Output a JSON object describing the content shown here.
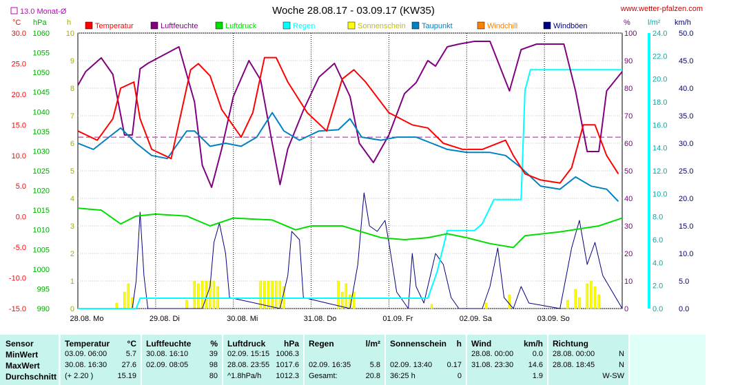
{
  "title": "Woche 28.08.17 - 03.09.17 (KW35)",
  "website": "www.wetter-pfalzen.com",
  "monat_label": "13.0 Monat-Ø",
  "units": {
    "temp": "°C",
    "pressure": "hPa",
    "hours": "h",
    "percent": "%",
    "rain": "l/m²",
    "wind": "km/h"
  },
  "legend": [
    {
      "name": "Temperatur",
      "color": "#ff0000"
    },
    {
      "name": "Luftfeuchte",
      "color": "#800080"
    },
    {
      "name": "Luftdruck",
      "color": "#00dd00"
    },
    {
      "name": "Regen",
      "color": "#00ffff"
    },
    {
      "name": "Sonnenschein",
      "color": "#ffff00"
    },
    {
      "name": "Taupunkt",
      "color": "#0080c0"
    },
    {
      "name": "Windchill",
      "color": "#ff8000"
    },
    {
      "name": "Windböen",
      "color": "#000080"
    }
  ],
  "chart_data": {
    "type": "line",
    "x_labels": [
      "28.08. Mo",
      "29.08. Di",
      "30.08. Mi",
      "31.08. Do",
      "01.09. Fr",
      "02.09. Sa",
      "03.09. So"
    ],
    "axes": {
      "temp": {
        "ticks": [
          "30.0",
          "25.0",
          "20.0",
          "15.0",
          "10.0",
          "5.0",
          "0.0",
          "-5.0",
          "-10.0",
          "-15.0"
        ],
        "range": [
          -15,
          30
        ]
      },
      "pressure": {
        "ticks": [
          "1060",
          "1055",
          "1050",
          "1045",
          "1040",
          "1035",
          "1030",
          "1025",
          "1020",
          "1015",
          "1010",
          "1005",
          "1000",
          "995",
          "990"
        ],
        "range": [
          990,
          1060
        ]
      },
      "hours": {
        "ticks": [
          "10",
          "9",
          "8",
          "7",
          "6",
          "5",
          "4",
          "3",
          "2",
          "1",
          "0"
        ],
        "range": [
          0,
          10
        ]
      },
      "humidity": {
        "ticks": [
          "100",
          "90",
          "80",
          "70",
          "60",
          "50",
          "40",
          "30",
          "20",
          "10",
          "0"
        ],
        "range": [
          0,
          100
        ]
      },
      "rain": {
        "ticks": [
          "24.0",
          "22.0",
          "20.0",
          "18.0",
          "16.0",
          "14.0",
          "12.0",
          "10.0",
          "8.0",
          "6.0",
          "4.0",
          "2.0",
          "0.0"
        ],
        "range": [
          0,
          24
        ]
      },
      "wind": {
        "ticks": [
          "50.0",
          "45.0",
          "40.0",
          "35.0",
          "30.0",
          "25.0",
          "20.0",
          "15.0",
          "10.0",
          "5.0",
          "0.0"
        ],
        "range": [
          0,
          50
        ]
      }
    },
    "monthly_avg_temp": 13.0,
    "series": [
      {
        "name": "Temperatur",
        "axis": "temp",
        "points": [
          [
            0,
            14
          ],
          [
            0.25,
            12.5
          ],
          [
            0.45,
            16
          ],
          [
            0.55,
            21
          ],
          [
            0.72,
            22
          ],
          [
            0.8,
            16
          ],
          [
            0.95,
            11
          ],
          [
            1.2,
            9.5
          ],
          [
            1.45,
            24
          ],
          [
            1.55,
            25
          ],
          [
            1.7,
            23
          ],
          [
            1.85,
            17.5
          ],
          [
            2.1,
            13
          ],
          [
            2.25,
            17
          ],
          [
            2.4,
            26
          ],
          [
            2.55,
            26
          ],
          [
            2.7,
            22
          ],
          [
            2.95,
            17
          ],
          [
            3.2,
            14
          ],
          [
            3.4,
            22.5
          ],
          [
            3.55,
            24
          ],
          [
            3.7,
            22
          ],
          [
            4.0,
            17
          ],
          [
            4.3,
            15
          ],
          [
            4.5,
            14.5
          ],
          [
            4.7,
            12
          ],
          [
            4.95,
            11
          ],
          [
            5.2,
            11
          ],
          [
            5.5,
            12.5
          ],
          [
            5.6,
            10
          ],
          [
            5.75,
            7
          ],
          [
            5.95,
            6
          ],
          [
            6.2,
            5.5
          ],
          [
            6.35,
            8
          ],
          [
            6.5,
            15
          ],
          [
            6.65,
            15
          ],
          [
            6.8,
            10
          ],
          [
            6.95,
            7
          ]
        ]
      },
      {
        "name": "Taupunkt",
        "axis": "temp",
        "points": [
          [
            0,
            12
          ],
          [
            0.2,
            11
          ],
          [
            0.4,
            13
          ],
          [
            0.55,
            14.5
          ],
          [
            0.75,
            12
          ],
          [
            0.95,
            10
          ],
          [
            1.15,
            9.5
          ],
          [
            1.4,
            14
          ],
          [
            1.5,
            14
          ],
          [
            1.7,
            11.5
          ],
          [
            1.9,
            12
          ],
          [
            2.1,
            11.5
          ],
          [
            2.3,
            13
          ],
          [
            2.5,
            17
          ],
          [
            2.65,
            14
          ],
          [
            2.85,
            12.5
          ],
          [
            3.1,
            14
          ],
          [
            3.35,
            14.2
          ],
          [
            3.5,
            16
          ],
          [
            3.65,
            13
          ],
          [
            3.9,
            12.5
          ],
          [
            4.1,
            13
          ],
          [
            4.35,
            13
          ],
          [
            4.55,
            12
          ],
          [
            4.75,
            11
          ],
          [
            5.0,
            10.5
          ],
          [
            5.3,
            10.5
          ],
          [
            5.5,
            10
          ],
          [
            5.7,
            8
          ],
          [
            5.95,
            5
          ],
          [
            6.2,
            4.5
          ],
          [
            6.4,
            6.5
          ],
          [
            6.6,
            5
          ],
          [
            6.8,
            4.5
          ],
          [
            6.95,
            2.5
          ]
        ]
      },
      {
        "name": "Luftfeuchte",
        "axis": "humidity",
        "points": [
          [
            0,
            81
          ],
          [
            0.1,
            86
          ],
          [
            0.3,
            91
          ],
          [
            0.45,
            85
          ],
          [
            0.6,
            63
          ],
          [
            0.7,
            63
          ],
          [
            0.8,
            87
          ],
          [
            0.9,
            89
          ],
          [
            1.1,
            92
          ],
          [
            1.3,
            95
          ],
          [
            1.5,
            75
          ],
          [
            1.6,
            52
          ],
          [
            1.72,
            44
          ],
          [
            1.85,
            58
          ],
          [
            2.0,
            77
          ],
          [
            2.2,
            90
          ],
          [
            2.35,
            83
          ],
          [
            2.5,
            60
          ],
          [
            2.6,
            45
          ],
          [
            2.7,
            58
          ],
          [
            2.9,
            72
          ],
          [
            3.1,
            84
          ],
          [
            3.3,
            89
          ],
          [
            3.5,
            77
          ],
          [
            3.62,
            60
          ],
          [
            3.8,
            53
          ],
          [
            4.0,
            63
          ],
          [
            4.2,
            78
          ],
          [
            4.35,
            82
          ],
          [
            4.5,
            90
          ],
          [
            4.6,
            88
          ],
          [
            4.75,
            95
          ],
          [
            4.9,
            96
          ],
          [
            5.1,
            97
          ],
          [
            5.3,
            97
          ],
          [
            5.55,
            79
          ],
          [
            5.7,
            94
          ],
          [
            5.9,
            96
          ],
          [
            6.1,
            96
          ],
          [
            6.25,
            96
          ],
          [
            6.4,
            79
          ],
          [
            6.55,
            57
          ],
          [
            6.7,
            57
          ],
          [
            6.8,
            79
          ],
          [
            7.0,
            86
          ]
        ]
      },
      {
        "name": "Luftdruck",
        "axis": "pressure",
        "points": [
          [
            0,
            1015.5
          ],
          [
            0.3,
            1015
          ],
          [
            0.55,
            1011.5
          ],
          [
            0.75,
            1013.5
          ],
          [
            1.0,
            1014
          ],
          [
            1.4,
            1013.5
          ],
          [
            1.7,
            1011
          ],
          [
            2.0,
            1013
          ],
          [
            2.5,
            1012.5
          ],
          [
            2.8,
            1010
          ],
          [
            3.0,
            1011
          ],
          [
            3.4,
            1011
          ],
          [
            3.9,
            1008
          ],
          [
            4.2,
            1007.5
          ],
          [
            4.5,
            1008
          ],
          [
            4.75,
            1009
          ],
          [
            5.0,
            1008
          ],
          [
            5.3,
            1006.5
          ],
          [
            5.6,
            1005.5
          ],
          [
            5.75,
            1008.5
          ],
          [
            6.2,
            1009.5
          ],
          [
            6.7,
            1011
          ],
          [
            7.0,
            1013
          ]
        ]
      },
      {
        "name": "Regen",
        "axis": "rain",
        "points": [
          [
            0,
            0
          ],
          [
            0.75,
            0
          ],
          [
            0.8,
            0.9
          ],
          [
            4.5,
            0.9
          ],
          [
            4.62,
            3.2
          ],
          [
            4.75,
            6.8
          ],
          [
            5.1,
            6.8
          ],
          [
            5.2,
            7.4
          ],
          [
            5.35,
            9.5
          ],
          [
            5.7,
            9.5
          ],
          [
            5.75,
            19
          ],
          [
            5.82,
            20.8
          ],
          [
            7.0,
            20.8
          ]
        ]
      },
      {
        "name": "Windböen",
        "axis": "wind",
        "points": [
          [
            0,
            0
          ],
          [
            0.7,
            0
          ],
          [
            0.75,
            5
          ],
          [
            0.8,
            17.5
          ],
          [
            0.85,
            6
          ],
          [
            0.9,
            0
          ],
          [
            1.6,
            0
          ],
          [
            1.7,
            4
          ],
          [
            1.75,
            12
          ],
          [
            1.82,
            15.5
          ],
          [
            1.9,
            10
          ],
          [
            1.95,
            2
          ],
          [
            2.6,
            0
          ],
          [
            2.7,
            6
          ],
          [
            2.75,
            14
          ],
          [
            2.85,
            12.5
          ],
          [
            2.9,
            2
          ],
          [
            3.5,
            0
          ],
          [
            3.6,
            8
          ],
          [
            3.68,
            21
          ],
          [
            3.75,
            15
          ],
          [
            3.85,
            14
          ],
          [
            3.95,
            16
          ],
          [
            4.0,
            12
          ],
          [
            4.1,
            3
          ],
          [
            4.25,
            0
          ],
          [
            4.3,
            10
          ],
          [
            4.35,
            4
          ],
          [
            4.45,
            1
          ],
          [
            4.6,
            10
          ],
          [
            4.7,
            8
          ],
          [
            4.8,
            2
          ],
          [
            4.9,
            0
          ],
          [
            5.2,
            0
          ],
          [
            5.3,
            4
          ],
          [
            5.4,
            11
          ],
          [
            5.48,
            2
          ],
          [
            5.6,
            0
          ],
          [
            5.7,
            4
          ],
          [
            5.8,
            1
          ],
          [
            6.2,
            0
          ],
          [
            6.35,
            11
          ],
          [
            6.45,
            16
          ],
          [
            6.55,
            8
          ],
          [
            6.65,
            12
          ],
          [
            6.75,
            6
          ],
          [
            7.0,
            0
          ]
        ]
      }
    ],
    "sunshine_bars": [
      [
        0.5,
        0.2
      ],
      [
        0.6,
        0.6
      ],
      [
        0.65,
        0.9
      ],
      [
        0.7,
        0.4
      ],
      [
        1.4,
        0.3
      ],
      [
        1.5,
        1.0
      ],
      [
        1.55,
        0.9
      ],
      [
        1.6,
        1.0
      ],
      [
        1.65,
        1.0
      ],
      [
        1.7,
        1.0
      ],
      [
        1.75,
        1.0
      ],
      [
        1.8,
        0.8
      ],
      [
        2.35,
        1.0
      ],
      [
        2.4,
        1.0
      ],
      [
        2.45,
        1.0
      ],
      [
        2.5,
        1.0
      ],
      [
        2.55,
        1.0
      ],
      [
        2.6,
        1.0
      ],
      [
        2.65,
        0.8
      ],
      [
        3.35,
        1.0
      ],
      [
        3.4,
        0.6
      ],
      [
        3.45,
        0.9
      ],
      [
        3.5,
        0.5
      ],
      [
        3.55,
        0.6
      ],
      [
        4.55,
        0.15
      ],
      [
        5.25,
        0.2
      ],
      [
        5.55,
        0.5
      ],
      [
        6.3,
        0.3
      ],
      [
        6.4,
        0.7
      ],
      [
        6.45,
        0.4
      ],
      [
        6.55,
        0.9
      ],
      [
        6.6,
        1.0
      ],
      [
        6.65,
        0.8
      ],
      [
        6.7,
        0.5
      ]
    ]
  },
  "table": {
    "sensor": {
      "header": "Sensor",
      "rows": [
        "MinWert",
        "MaxWert",
        "Durchschnitt"
      ]
    },
    "temperatur": {
      "header": "Temperatur",
      "unit": "°C",
      "rows": [
        [
          "03.09.  06:00",
          "5.7"
        ],
        [
          "30.08.  16:30",
          "27.6"
        ],
        [
          "(+ 2.20 )",
          "15.19"
        ]
      ]
    },
    "luftfeuchte": {
      "header": "Luftfeuchte",
      "unit": "%",
      "rows": [
        [
          "30.08.  16:10",
          "39"
        ],
        [
          "02.09.  08:05",
          "98"
        ],
        [
          "",
          "80"
        ]
      ]
    },
    "luftdruck": {
      "header": "Luftdruck",
      "unit": "hPa",
      "rows": [
        [
          "02.09.  15:15",
          "1006.3"
        ],
        [
          "28.08.  23:55",
          "1017.6"
        ],
        [
          "^1.8hPa/h",
          "1012.3"
        ]
      ]
    },
    "regen": {
      "header": "Regen",
      "unit": "l/m²",
      "rows": [
        [
          "",
          ""
        ],
        [
          "02.09.  16:35",
          "5.8"
        ],
        [
          "Gesamt:",
          "20.8"
        ]
      ]
    },
    "sonnenschein": {
      "header": "Sonnenschein",
      "unit": "h",
      "rows": [
        [
          "",
          ""
        ],
        [
          "02.09.  13:40",
          "0.17"
        ],
        [
          "36:25 h",
          "0"
        ]
      ]
    },
    "wind": {
      "header": "Wind",
      "unit": "km/h",
      "rows": [
        [
          "28.08.  00:00",
          "0.0"
        ],
        [
          "31.08.  23:30",
          "14.6"
        ],
        [
          "",
          "1.9"
        ]
      ]
    },
    "richtung": {
      "header": "Richtung",
      "rows": [
        [
          "28.08.  00:00",
          "N"
        ],
        [
          "28.08.  18:45",
          "N"
        ],
        [
          "",
          "W-SW"
        ]
      ]
    }
  }
}
